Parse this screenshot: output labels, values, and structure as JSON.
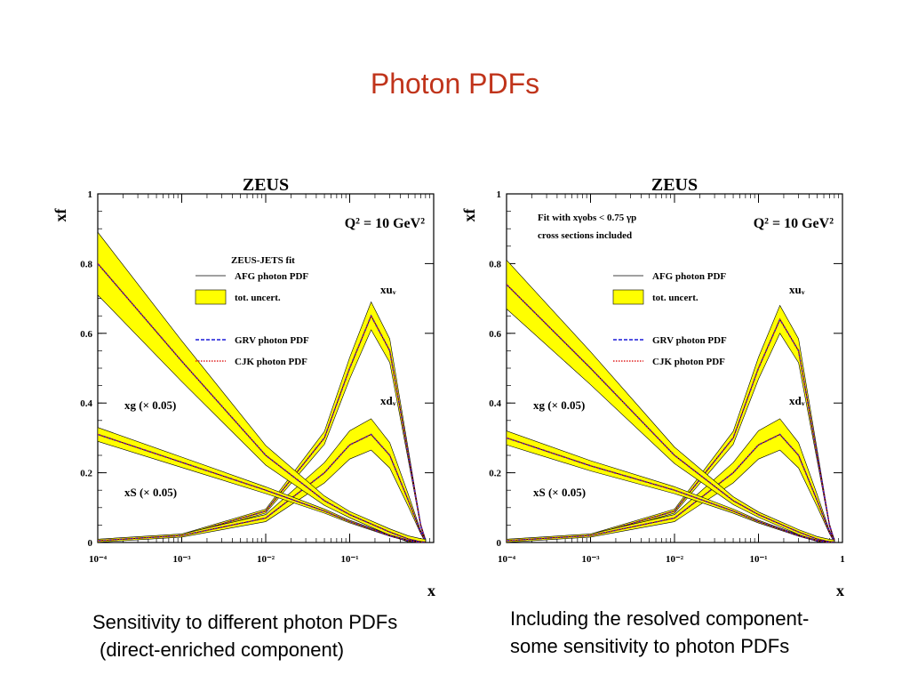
{
  "slide": {
    "title": "Photon PDFs",
    "caption_left": [
      "Sensitivity to different photon PDFs",
      "(direct-enriched component)"
    ],
    "caption_right": [
      "Including the resolved component-",
      "some sensitivity to photon PDFs"
    ]
  },
  "chart_data": [
    {
      "type": "line",
      "title": "ZEUS",
      "q2_label": "Q² = 10 GeV²",
      "fit_label": "ZEUS-JETS fit",
      "fit_note": [],
      "xlabel": "x",
      "ylabel": "xf",
      "x_scale": "log",
      "xlim": [
        0.0001,
        1
      ],
      "ylim": [
        0,
        1
      ],
      "x_ticks": [
        "10⁻⁴",
        "10⁻³",
        "10⁻²",
        "10⁻¹"
      ],
      "y_ticks": [
        "0",
        "0.2",
        "0.4",
        "0.6",
        "0.8",
        "1"
      ],
      "legend": [
        {
          "label": "AFG photon PDF",
          "style": "solid",
          "color": "#000000"
        },
        {
          "label": "tot. uncert.",
          "style": "band",
          "color": "#ffff00"
        },
        {
          "label": "GRV photon PDF",
          "style": "dashed",
          "color": "#1a1ad8"
        },
        {
          "label": "CJK photon PDF",
          "style": "dotted",
          "color": "#e02020"
        }
      ],
      "legend_position": "upper-middle",
      "curve_labels": [
        "xuᵥ",
        "xdᵥ",
        "xg (× 0.05)",
        "xS (× 0.05)"
      ],
      "series": [
        {
          "name": "xuᵥ",
          "x": [
            0.0001,
            0.001,
            0.01,
            0.05,
            0.1,
            0.18,
            0.3,
            0.5,
            0.7,
            0.8
          ],
          "y": [
            0.005,
            0.02,
            0.09,
            0.3,
            0.5,
            0.65,
            0.55,
            0.25,
            0.05,
            0.005
          ],
          "band": 0.04
        },
        {
          "name": "xdᵥ",
          "x": [
            0.0001,
            0.001,
            0.01,
            0.05,
            0.1,
            0.18,
            0.3,
            0.5,
            0.7,
            0.8
          ],
          "y": [
            0.005,
            0.02,
            0.07,
            0.2,
            0.28,
            0.31,
            0.25,
            0.12,
            0.03,
            0.005
          ],
          "band": 0.045
        },
        {
          "name": "xg (× 0.05)",
          "x": [
            0.0001,
            0.001,
            0.01,
            0.05,
            0.1,
            0.3,
            0.5,
            0.7,
            0.8
          ],
          "y": [
            0.8,
            0.52,
            0.25,
            0.12,
            0.08,
            0.03,
            0.01,
            0.002,
            0.0
          ],
          "band": 0.09
        },
        {
          "name": "xS (× 0.05)",
          "x": [
            0.0001,
            0.001,
            0.01,
            0.05,
            0.1,
            0.3,
            0.5,
            0.7,
            0.8
          ],
          "y": [
            0.31,
            0.23,
            0.15,
            0.09,
            0.06,
            0.02,
            0.005,
            0.001,
            0.0
          ],
          "band": 0.02
        }
      ]
    },
    {
      "type": "line",
      "title": "ZEUS",
      "q2_label": "Q² = 10 GeV²",
      "fit_label": "",
      "fit_note": [
        "Fit with xγobs < 0.75 γp",
        "cross sections included"
      ],
      "xlabel": "x",
      "ylabel": "xf",
      "x_scale": "log",
      "xlim": [
        0.0001,
        1
      ],
      "ylim": [
        0,
        1
      ],
      "x_ticks": [
        "10⁻⁴",
        "10⁻³",
        "10⁻²",
        "10⁻¹",
        "1"
      ],
      "y_ticks": [
        "0",
        "0.2",
        "0.4",
        "0.6",
        "0.8",
        "1"
      ],
      "legend": [
        {
          "label": "AFG photon PDF",
          "style": "solid",
          "color": "#000000"
        },
        {
          "label": "tot. uncert.",
          "style": "band",
          "color": "#ffff00"
        },
        {
          "label": "GRV photon PDF",
          "style": "dashed",
          "color": "#1a1ad8"
        },
        {
          "label": "CJK photon PDF",
          "style": "dotted",
          "color": "#e02020"
        }
      ],
      "legend_position": "upper-middle",
      "curve_labels": [
        "xuᵥ",
        "xdᵥ",
        "xg (× 0.05)",
        "xS (× 0.05)"
      ],
      "series": [
        {
          "name": "xuᵥ",
          "x": [
            0.0001,
            0.001,
            0.01,
            0.05,
            0.1,
            0.18,
            0.3,
            0.5,
            0.7,
            0.8
          ],
          "y": [
            0.005,
            0.02,
            0.09,
            0.3,
            0.5,
            0.64,
            0.55,
            0.25,
            0.05,
            0.005
          ],
          "band": 0.04
        },
        {
          "name": "xdᵥ",
          "x": [
            0.0001,
            0.001,
            0.01,
            0.05,
            0.1,
            0.18,
            0.3,
            0.5,
            0.7,
            0.8
          ],
          "y": [
            0.005,
            0.02,
            0.07,
            0.2,
            0.28,
            0.31,
            0.25,
            0.12,
            0.03,
            0.005
          ],
          "band": 0.045
        },
        {
          "name": "xg (× 0.05)",
          "x": [
            0.0001,
            0.001,
            0.01,
            0.05,
            0.1,
            0.3,
            0.5,
            0.7,
            0.8
          ],
          "y": [
            0.74,
            0.5,
            0.25,
            0.12,
            0.08,
            0.03,
            0.01,
            0.002,
            0.0
          ],
          "band": 0.07
        },
        {
          "name": "xS (× 0.05)",
          "x": [
            0.0001,
            0.001,
            0.01,
            0.05,
            0.1,
            0.3,
            0.5,
            0.7,
            0.8
          ],
          "y": [
            0.3,
            0.22,
            0.15,
            0.09,
            0.06,
            0.02,
            0.005,
            0.001,
            0.0
          ],
          "band": 0.02
        }
      ]
    }
  ]
}
